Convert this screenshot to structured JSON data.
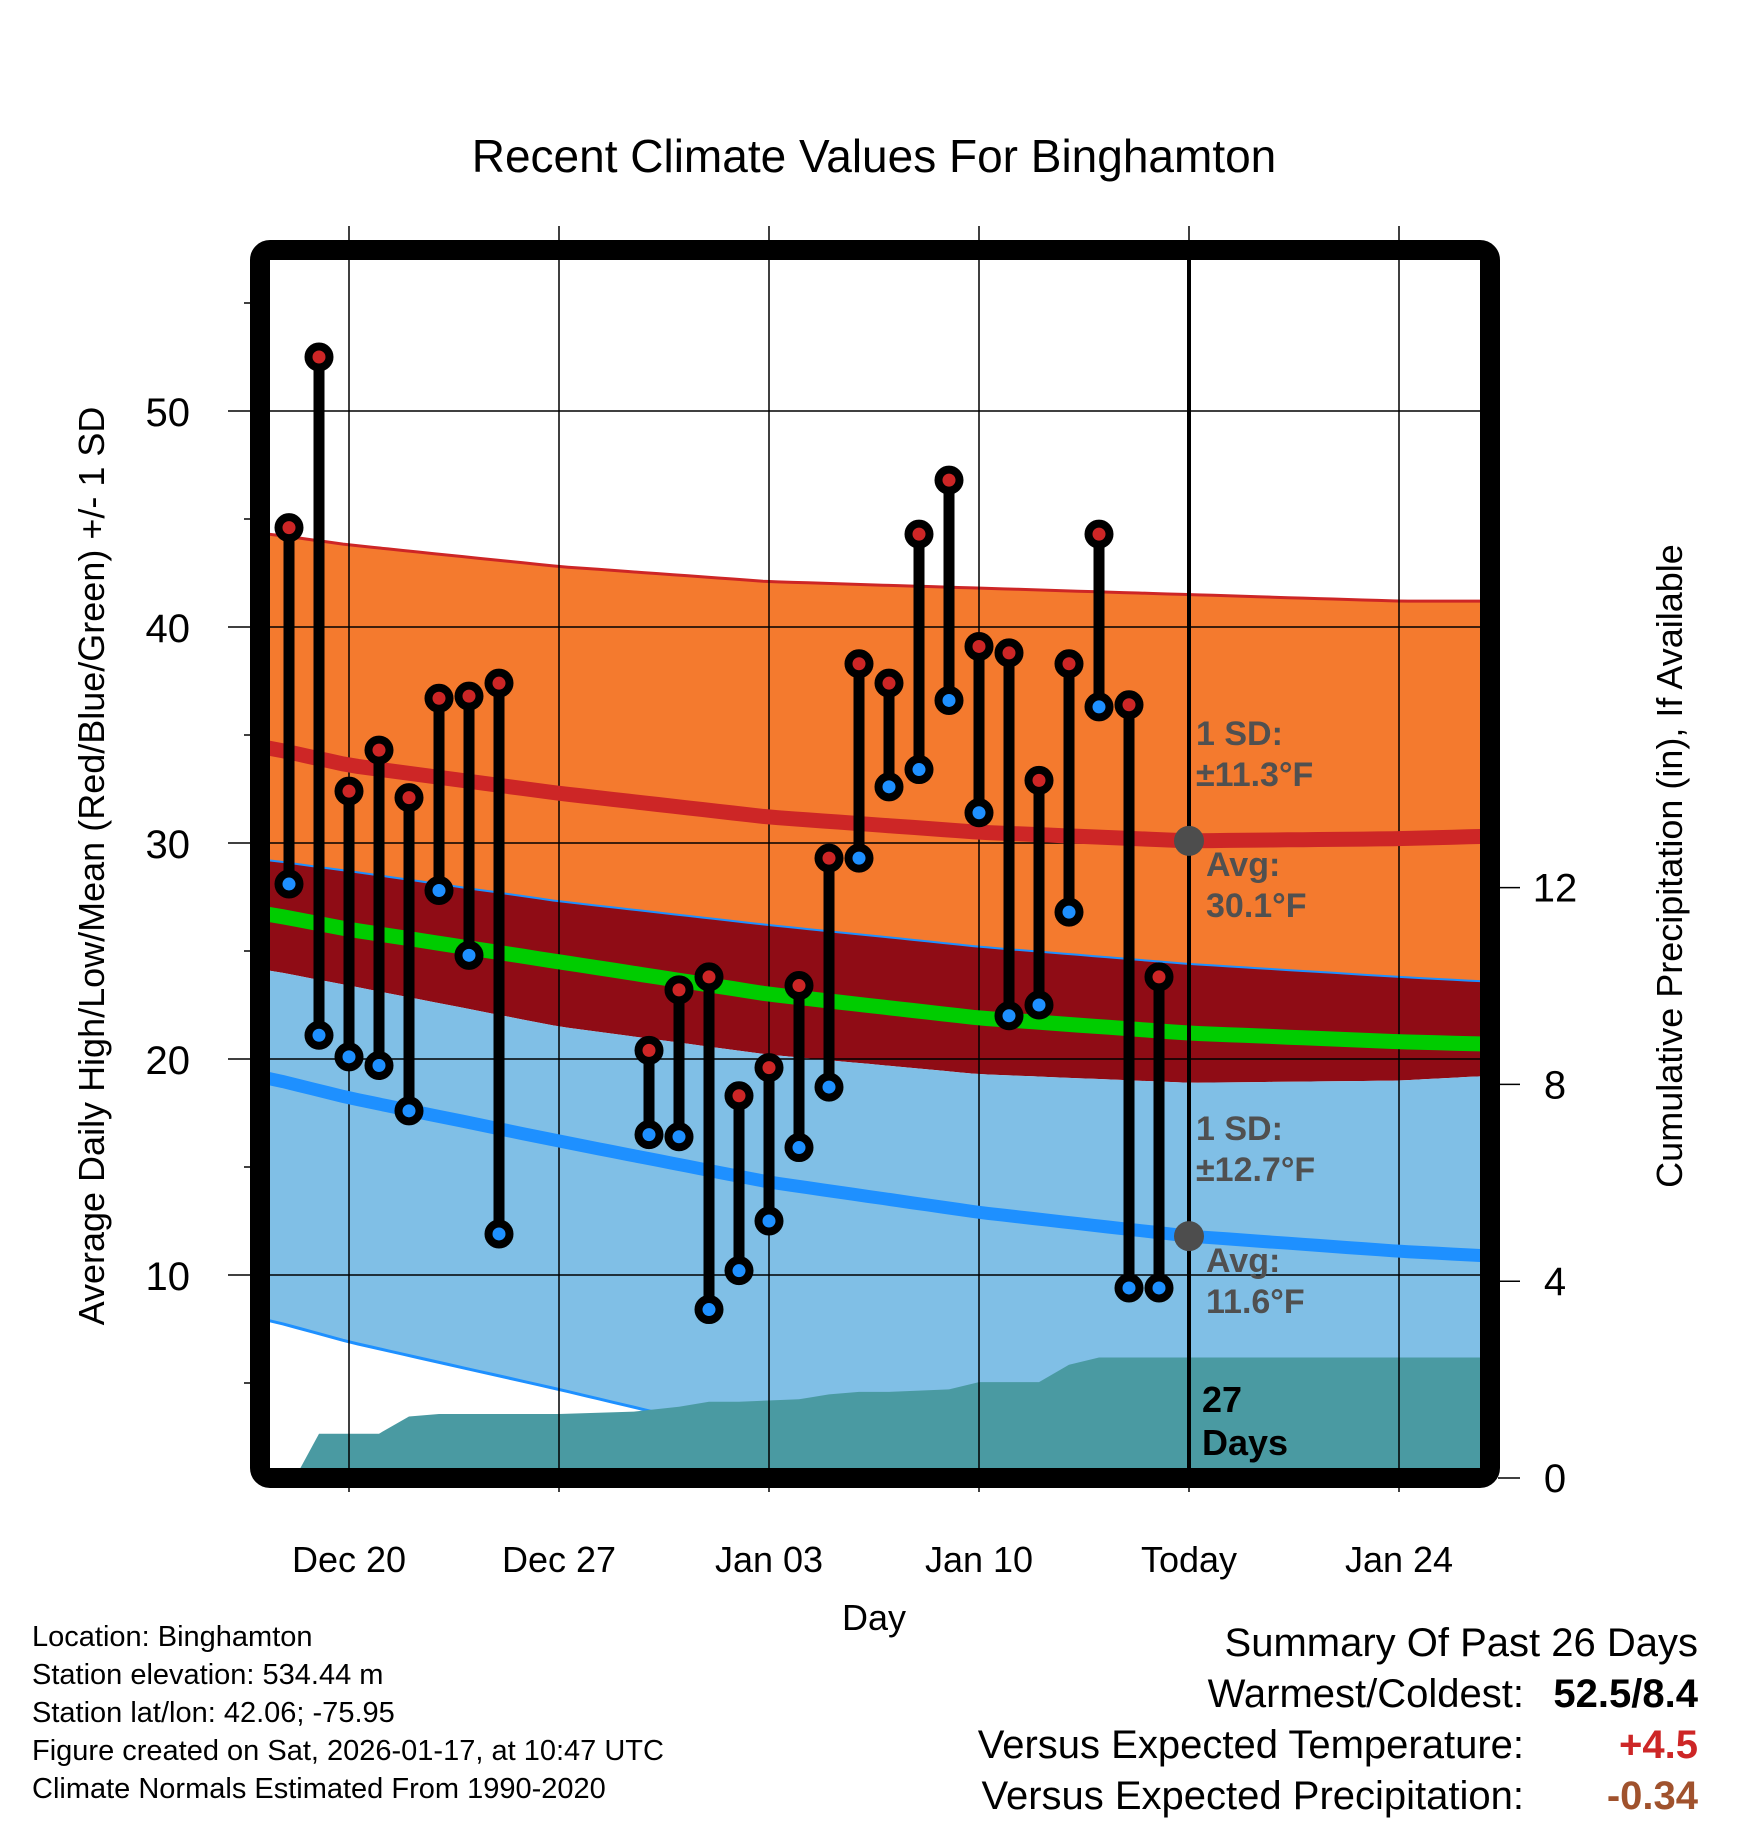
{
  "chart_data": {
    "type": "line",
    "title": "Recent Climate Values For Binghamton",
    "xlabel": "Day",
    "ylabel": "Average Daily High/Low/Mean (Red/Blue/Green) +/- 1 SD",
    "y2label": "Cumulative Precipitation (in), If Available",
    "xlim": [
      "Dec 17.4",
      "Jan 27.7"
    ],
    "ylim": [
      0.9,
      57.0
    ],
    "y2lim": [
      -0.2,
      21.2
    ],
    "grid": true,
    "x_ticks": [
      {
        "label": "Dec 20",
        "day": 0
      },
      {
        "label": "Dec 27",
        "day": 7
      },
      {
        "label": "Jan 03",
        "day": 14
      },
      {
        "label": "Jan 10",
        "day": 21
      },
      {
        "label": "Today",
        "day": 28
      },
      {
        "label": "Jan 24",
        "day": 35
      }
    ],
    "y_ticks": [
      10,
      20,
      30,
      40,
      50
    ],
    "y_minor_ticks": [
      5,
      15,
      25,
      35,
      45,
      55
    ],
    "y2_ticks": [
      0,
      4,
      8,
      12
    ],
    "normals": {
      "days": [
        -2.63,
        0,
        7,
        14,
        21,
        28,
        35,
        37.7
      ],
      "high_plus_sd": [
        44.3,
        43.8,
        42.8,
        42.1,
        41.8,
        41.5,
        41.2,
        41.2
      ],
      "high_avg": [
        34.4,
        33.6,
        32.3,
        31.2,
        30.5,
        30.1,
        30.2,
        30.3
      ],
      "low_plus_sd": [
        29.2,
        28.7,
        27.3,
        26.2,
        25.2,
        24.4,
        23.8,
        23.6
      ],
      "mean_avg": [
        26.7,
        26.0,
        24.5,
        23.0,
        21.9,
        21.2,
        20.8,
        20.7
      ],
      "high_minus_sd": [
        24.1,
        23.4,
        21.5,
        20.2,
        19.3,
        18.9,
        19.0,
        19.2
      ],
      "low_avg": [
        19.1,
        18.2,
        16.2,
        14.3,
        12.9,
        11.8,
        11.1,
        10.9
      ],
      "low_minus_sd": [
        7.9,
        6.9,
        4.7,
        2.4,
        1.0,
        -0.5,
        -1.5,
        -1.8
      ]
    },
    "series": [
      {
        "name": "Daily High",
        "color": "#cd2626",
        "days": [
          -2,
          -1,
          0,
          1,
          2,
          3,
          4,
          5,
          10,
          11,
          12,
          13,
          14,
          15,
          16,
          17,
          18,
          19,
          20,
          21,
          22,
          23,
          24,
          25,
          26,
          27
        ],
        "values": [
          44.6,
          52.5,
          32.4,
          34.3,
          32.1,
          36.7,
          36.8,
          37.4,
          20.4,
          23.2,
          23.8,
          18.3,
          19.6,
          23.4,
          29.3,
          38.3,
          37.4,
          44.3,
          46.8,
          39.1,
          38.8,
          32.9,
          38.3,
          44.3,
          36.4,
          23.8
        ]
      },
      {
        "name": "Daily Low",
        "color": "#1e90ff",
        "days": [
          -2,
          -1,
          0,
          1,
          2,
          3,
          4,
          5,
          10,
          11,
          12,
          13,
          14,
          15,
          16,
          17,
          18,
          19,
          20,
          21,
          22,
          23,
          24,
          25,
          26,
          27
        ],
        "values": [
          28.1,
          21.1,
          20.1,
          19.7,
          17.6,
          27.8,
          24.8,
          11.9,
          16.5,
          16.4,
          8.4,
          10.2,
          12.5,
          15.9,
          18.7,
          29.3,
          32.6,
          33.4,
          36.6,
          31.4,
          22.0,
          22.5,
          26.8,
          36.3,
          9.4,
          9.4
        ]
      }
    ],
    "precipitation": {
      "name": "Cumulative Precipitation (in)",
      "color": "#4a9aa2",
      "days": [
        -1.8,
        -1,
        1,
        2,
        3,
        7,
        9.5,
        11,
        12,
        13,
        15,
        16,
        17,
        18,
        20,
        21,
        23,
        24,
        25,
        26,
        37.7
      ],
      "values": [
        0,
        0.9,
        0.9,
        1.25,
        1.3,
        1.3,
        1.35,
        1.45,
        1.55,
        1.55,
        1.6,
        1.7,
        1.75,
        1.75,
        1.8,
        1.95,
        1.95,
        2.3,
        2.45,
        2.45,
        2.45
      ]
    },
    "annotations": {
      "high_sd": {
        "line1": "1 SD:",
        "line2": "±11.3°F"
      },
      "high_avg": {
        "line1": "Avg:",
        "line2": "30.1°F",
        "value": 30.1
      },
      "low_sd": {
        "line1": "1 SD:",
        "line2": "±12.7°F"
      },
      "low_avg": {
        "line1": "Avg:",
        "line2": "11.6°F",
        "value": 11.6
      },
      "days": {
        "line1": "27",
        "line2": "Days"
      }
    },
    "colors": {
      "orange_band": "#f47a2e",
      "dark_red_band": "#8f0c15",
      "light_blue_band": "#80bfe6",
      "high_line": "#cd2626",
      "mean_line": "#00cc00",
      "low_line": "#1e90ff",
      "annotation": "#505050",
      "marker_today": "#4d4d4d"
    }
  },
  "footer": {
    "location": "Location: Binghamton",
    "elevation": "Station elevation: 534.44 m",
    "latlon": "Station lat/lon: 42.06; -75.95",
    "created": "Figure created on Sat, 2026-01-17, at 10:47 UTC",
    "normals": "Climate Normals Estimated From 1990-2020"
  },
  "summary": {
    "title": "Summary Of Past 26 Days",
    "warmest_coldest_label": "Warmest/Coldest:",
    "warmest_coldest_value": "52.5/8.4",
    "temp_label": "Versus Expected Temperature:",
    "temp_value": "+4.5",
    "temp_color": "#cd2626",
    "precip_label": "Versus Expected Precipitation:",
    "precip_value": "-0.34",
    "precip_color": "#a0522d"
  }
}
